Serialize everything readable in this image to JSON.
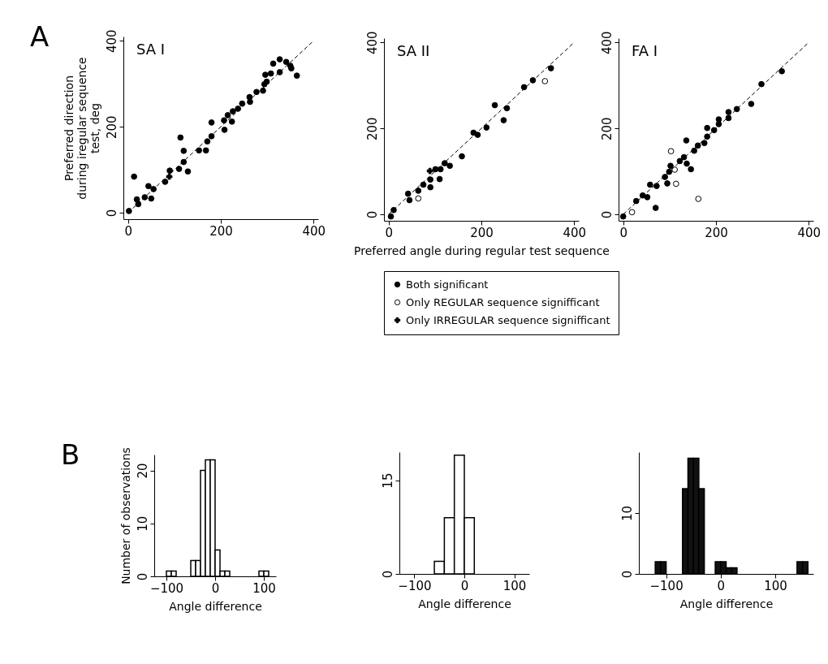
{
  "chart_data": [
    {
      "type": "scatter",
      "title": "SA I",
      "ylabel": "Preferred direction during iregular sequence test, deg",
      "annotations": [
        "A"
      ],
      "xlim": [
        -10,
        410
      ],
      "ylim": [
        -15,
        410
      ],
      "xticks": [
        0,
        200,
        400
      ],
      "yticks": [
        0,
        200,
        400
      ],
      "series": [
        {
          "color": "#000000",
          "marker": "circle",
          "x": [
            2,
            13,
            19,
            22,
            36,
            44,
            50,
            55,
            80,
            90,
            113,
            110,
            120,
            120,
            129,
            153,
            168,
            171,
            180,
            180,
            208,
            207,
            215,
            224,
            226,
            237,
            246,
            262,
            263,
            277,
            291,
            294,
            299,
            296,
            308,
            313,
            327,
            327,
            341,
            350,
            352,
            364
          ],
          "values": [
            4,
            84,
            31,
            20,
            36,
            62,
            33,
            55,
            72,
            98,
            175,
            102,
            144,
            118,
            96,
            145,
            145,
            166,
            178,
            210,
            193,
            215,
            227,
            212,
            236,
            242,
            254,
            269,
            258,
            281,
            284,
            299,
            305,
            321,
            324,
            347,
            357,
            327,
            351,
            342,
            336,
            319
          ]
        },
        {
          "color": "#000000",
          "marker": "cross",
          "x": [
            89
          ],
          "values": [
            84
          ]
        },
        {
          "type": "line",
          "color": "#000000",
          "line_style": "dashed",
          "x": [
            0,
            400
          ],
          "values": [
            0,
            400
          ]
        }
      ]
    },
    {
      "type": "scatter",
      "title": "SA II",
      "xlabel": "Preferred angle during regular test sequence",
      "legend": "bottom",
      "xlim": [
        -10,
        410
      ],
      "ylim": [
        -15,
        410
      ],
      "xticks": [
        0,
        200,
        400
      ],
      "yticks": [
        0,
        200,
        400
      ],
      "series": [
        {
          "name": "Both significant",
          "color": "#000000",
          "marker": "circle",
          "x": [
            5,
            11,
            42,
            45,
            64,
            75,
            90,
            90,
            101,
            110,
            112,
            121,
            132,
            158,
            183,
            192,
            211,
            229,
            248,
            255,
            292,
            311,
            350
          ],
          "values": [
            -5,
            10,
            48,
            33,
            55,
            69,
            81,
            63,
            105,
            82,
            105,
            119,
            113,
            135,
            190,
            185,
            202,
            254,
            219,
            247,
            296,
            312,
            340
          ]
        },
        {
          "name": "Only REGULAR sequence signifficant",
          "color": "#ffffff",
          "marker": "circle",
          "x": [
            64,
            337
          ],
          "values": [
            37,
            310
          ]
        },
        {
          "name": "Only IRREGULAR sequence signifficant",
          "color": "#000000",
          "marker": "cross",
          "x": [
            89
          ],
          "values": [
            101
          ]
        },
        {
          "type": "line",
          "color": "#000000",
          "line_style": "dashed",
          "x": [
            0,
            400
          ],
          "values": [
            0,
            400
          ]
        }
      ]
    },
    {
      "type": "scatter",
      "title": "FA I",
      "xlim": [
        -10,
        410
      ],
      "ylim": [
        -15,
        410
      ],
      "xticks": [
        0,
        200,
        400
      ],
      "yticks": [
        0,
        200,
        400
      ],
      "series": [
        {
          "color": "#000000",
          "marker": "circle",
          "x": [
            0,
            28,
            42,
            52,
            58,
            70,
            72,
            90,
            95,
            99,
            102,
            122,
            131,
            137,
            146,
            136,
            153,
            161,
            175,
            181,
            181,
            196,
            206,
            206,
            227,
            227,
            245,
            276,
            298,
            342
          ],
          "values": [
            -5,
            31,
            44,
            40,
            69,
            15,
            66,
            87,
            72,
            99,
            113,
            124,
            133,
            118,
            105,
            172,
            148,
            160,
            166,
            181,
            201,
            196,
            210,
            221,
            224,
            238,
            245,
            257,
            303,
            333
          ]
        },
        {
          "color": "#ffffff",
          "marker": "circle",
          "x": [
            19,
            103,
            111,
            114,
            162
          ],
          "values": [
            5,
            147,
            104,
            71,
            36
          ]
        },
        {
          "type": "line",
          "color": "#000000",
          "line_style": "dashed",
          "x": [
            0,
            400
          ],
          "values": [
            0,
            400
          ]
        }
      ]
    },
    {
      "type": "histogram",
      "ylabel": "Number of observations",
      "xlabel": "Angle difference",
      "annotations": [
        "B"
      ],
      "color": "#ffffff",
      "xlim": [
        -125,
        125
      ],
      "ylim": [
        0,
        23
      ],
      "xticks": [
        -100,
        0,
        100
      ],
      "yticks": [
        0,
        10,
        20
      ],
      "bins": [
        -100,
        -90,
        -80,
        -70,
        -60,
        -50,
        -40,
        -30,
        -20,
        -10,
        0,
        10,
        20,
        30,
        40,
        50,
        60,
        70,
        80,
        90,
        100,
        110
      ],
      "values": [
        1,
        1,
        0,
        0,
        0,
        3,
        3,
        20,
        22,
        22,
        5,
        1,
        1,
        0,
        0,
        0,
        0,
        0,
        0,
        1,
        1
      ]
    },
    {
      "type": "histogram",
      "xlabel": "Angle difference",
      "color": "#ffffff",
      "xlim": [
        -130,
        130
      ],
      "ylim": [
        0,
        19.5
      ],
      "xticks": [
        -100,
        0,
        100
      ],
      "yticks": [
        0,
        15
      ],
      "bins": [
        -60,
        -40,
        -20,
        0,
        20
      ],
      "values": [
        2,
        9,
        19,
        9
      ]
    },
    {
      "type": "histogram",
      "xlabel": "Angle difference",
      "color": "#111111",
      "xlim": [
        -150,
        170
      ],
      "ylim": [
        0,
        20
      ],
      "xticks": [
        -100,
        0,
        100
      ],
      "yticks": [
        0,
        10
      ],
      "bins": [
        -120,
        -110,
        -100,
        -90,
        -80,
        -70,
        -60,
        -50,
        -40,
        -30,
        -20,
        -10,
        0,
        10,
        20,
        30,
        40,
        50,
        60,
        70,
        80,
        90,
        100,
        110,
        120,
        130,
        140,
        150,
        160
      ],
      "values": [
        2,
        2,
        0,
        0,
        0,
        14,
        19,
        19,
        14,
        0,
        0,
        2,
        2,
        1,
        1,
        0,
        0,
        0,
        0,
        0,
        0,
        0,
        0,
        0,
        0,
        0,
        2,
        2
      ]
    }
  ]
}
